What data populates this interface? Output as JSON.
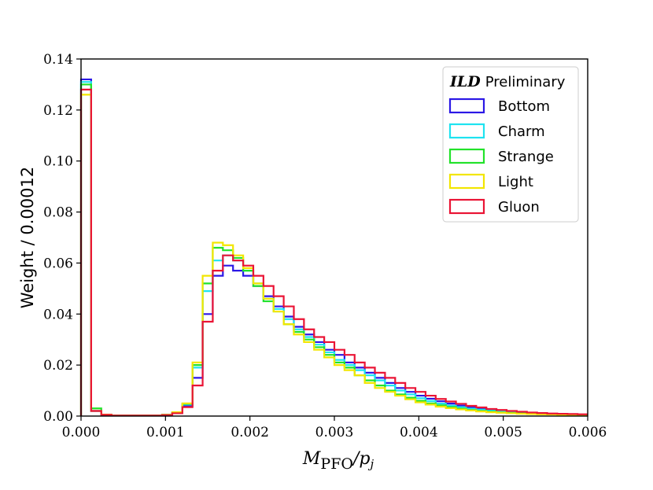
{
  "chart_data": {
    "type": "step-histogram",
    "title": "",
    "xlabel_main": "M",
    "xlabel_sub": "PFO",
    "xlabel_tail": "/p",
    "xlabel_tail_sub": "j",
    "ylabel": "Weight / 0.00012",
    "xlim": [
      0,
      0.006
    ],
    "ylim": [
      0,
      0.14
    ],
    "bin_width": 0.00012,
    "x_ticks": [
      "0.000",
      "0.001",
      "0.002",
      "0.003",
      "0.004",
      "0.005",
      "0.006"
    ],
    "x_tick_values": [
      0,
      0.001,
      0.002,
      0.003,
      0.004,
      0.005,
      0.006
    ],
    "y_ticks": [
      "0.00",
      "0.02",
      "0.04",
      "0.06",
      "0.08",
      "0.10",
      "0.12",
      "0.14"
    ],
    "y_tick_values": [
      0,
      0.02,
      0.04,
      0.06,
      0.08,
      0.1,
      0.12,
      0.14
    ],
    "legend": {
      "title_bold": "ILD",
      "title_rest": "Preliminary",
      "placement": "top-right"
    },
    "series": [
      {
        "name": "Bottom",
        "color": "#2b18e6",
        "values": [
          0.132,
          0.002,
          0.0005,
          0.0002,
          0.0002,
          0.0002,
          0.0002,
          0.0002,
          0.0005,
          0.0012,
          0.004,
          0.015,
          0.04,
          0.055,
          0.059,
          0.057,
          0.055,
          0.051,
          0.047,
          0.043,
          0.039,
          0.035,
          0.032,
          0.029,
          0.026,
          0.024,
          0.021,
          0.019,
          0.017,
          0.015,
          0.013,
          0.011,
          0.0095,
          0.008,
          0.0068,
          0.0058,
          0.0049,
          0.0041,
          0.0035,
          0.003,
          0.0025,
          0.0021,
          0.0018,
          0.0015,
          0.0013,
          0.0011,
          0.0009,
          0.0008,
          0.0007,
          0.0006
        ]
      },
      {
        "name": "Charm",
        "color": "#1ee3f0",
        "values": [
          0.131,
          0.002,
          0.0005,
          0.0002,
          0.0002,
          0.0002,
          0.0002,
          0.0002,
          0.0005,
          0.0013,
          0.0045,
          0.019,
          0.049,
          0.061,
          0.063,
          0.061,
          0.057,
          0.052,
          0.046,
          0.042,
          0.038,
          0.034,
          0.031,
          0.028,
          0.025,
          0.022,
          0.02,
          0.018,
          0.016,
          0.014,
          0.012,
          0.01,
          0.0085,
          0.007,
          0.0059,
          0.0049,
          0.0041,
          0.0035,
          0.0029,
          0.0025,
          0.0021,
          0.0018,
          0.0015,
          0.0013,
          0.0011,
          0.0009,
          0.0008,
          0.0007,
          0.0006,
          0.0005
        ]
      },
      {
        "name": "Strange",
        "color": "#22e22a",
        "values": [
          0.13,
          0.003,
          0.0006,
          0.0002,
          0.0002,
          0.0002,
          0.0002,
          0.0002,
          0.0005,
          0.0014,
          0.0048,
          0.02,
          0.052,
          0.066,
          0.065,
          0.062,
          0.057,
          0.051,
          0.045,
          0.041,
          0.036,
          0.033,
          0.03,
          0.027,
          0.024,
          0.021,
          0.019,
          0.016,
          0.014,
          0.012,
          0.01,
          0.0085,
          0.0072,
          0.006,
          0.005,
          0.0042,
          0.0035,
          0.0029,
          0.0024,
          0.002,
          0.0017,
          0.0014,
          0.0012,
          0.001,
          0.0009,
          0.0008,
          0.0007,
          0.0006,
          0.0005,
          0.0004
        ]
      },
      {
        "name": "Light",
        "color": "#f2e600",
        "values": [
          0.126,
          0.002,
          0.0006,
          0.0002,
          0.0002,
          0.0002,
          0.0002,
          0.0002,
          0.0005,
          0.0015,
          0.005,
          0.021,
          0.055,
          0.068,
          0.067,
          0.063,
          0.058,
          0.052,
          0.046,
          0.041,
          0.036,
          0.032,
          0.029,
          0.026,
          0.023,
          0.02,
          0.018,
          0.016,
          0.013,
          0.011,
          0.0095,
          0.008,
          0.0066,
          0.0054,
          0.0045,
          0.0037,
          0.0031,
          0.0026,
          0.0022,
          0.0018,
          0.0015,
          0.0013,
          0.0011,
          0.0009,
          0.0008,
          0.0007,
          0.0006,
          0.0005,
          0.0004,
          0.0004
        ]
      },
      {
        "name": "Gluon",
        "color": "#ea1435",
        "values": [
          0.128,
          0.002,
          0.0005,
          0.0002,
          0.0002,
          0.0002,
          0.0002,
          0.0002,
          0.0004,
          0.0011,
          0.0035,
          0.012,
          0.037,
          0.057,
          0.063,
          0.061,
          0.059,
          0.055,
          0.051,
          0.047,
          0.043,
          0.038,
          0.034,
          0.031,
          0.029,
          0.026,
          0.024,
          0.021,
          0.019,
          0.017,
          0.015,
          0.013,
          0.011,
          0.0095,
          0.008,
          0.0067,
          0.0057,
          0.0048,
          0.004,
          0.0034,
          0.0028,
          0.0024,
          0.002,
          0.0017,
          0.0014,
          0.0012,
          0.001,
          0.0009,
          0.0008,
          0.0007
        ]
      }
    ]
  }
}
